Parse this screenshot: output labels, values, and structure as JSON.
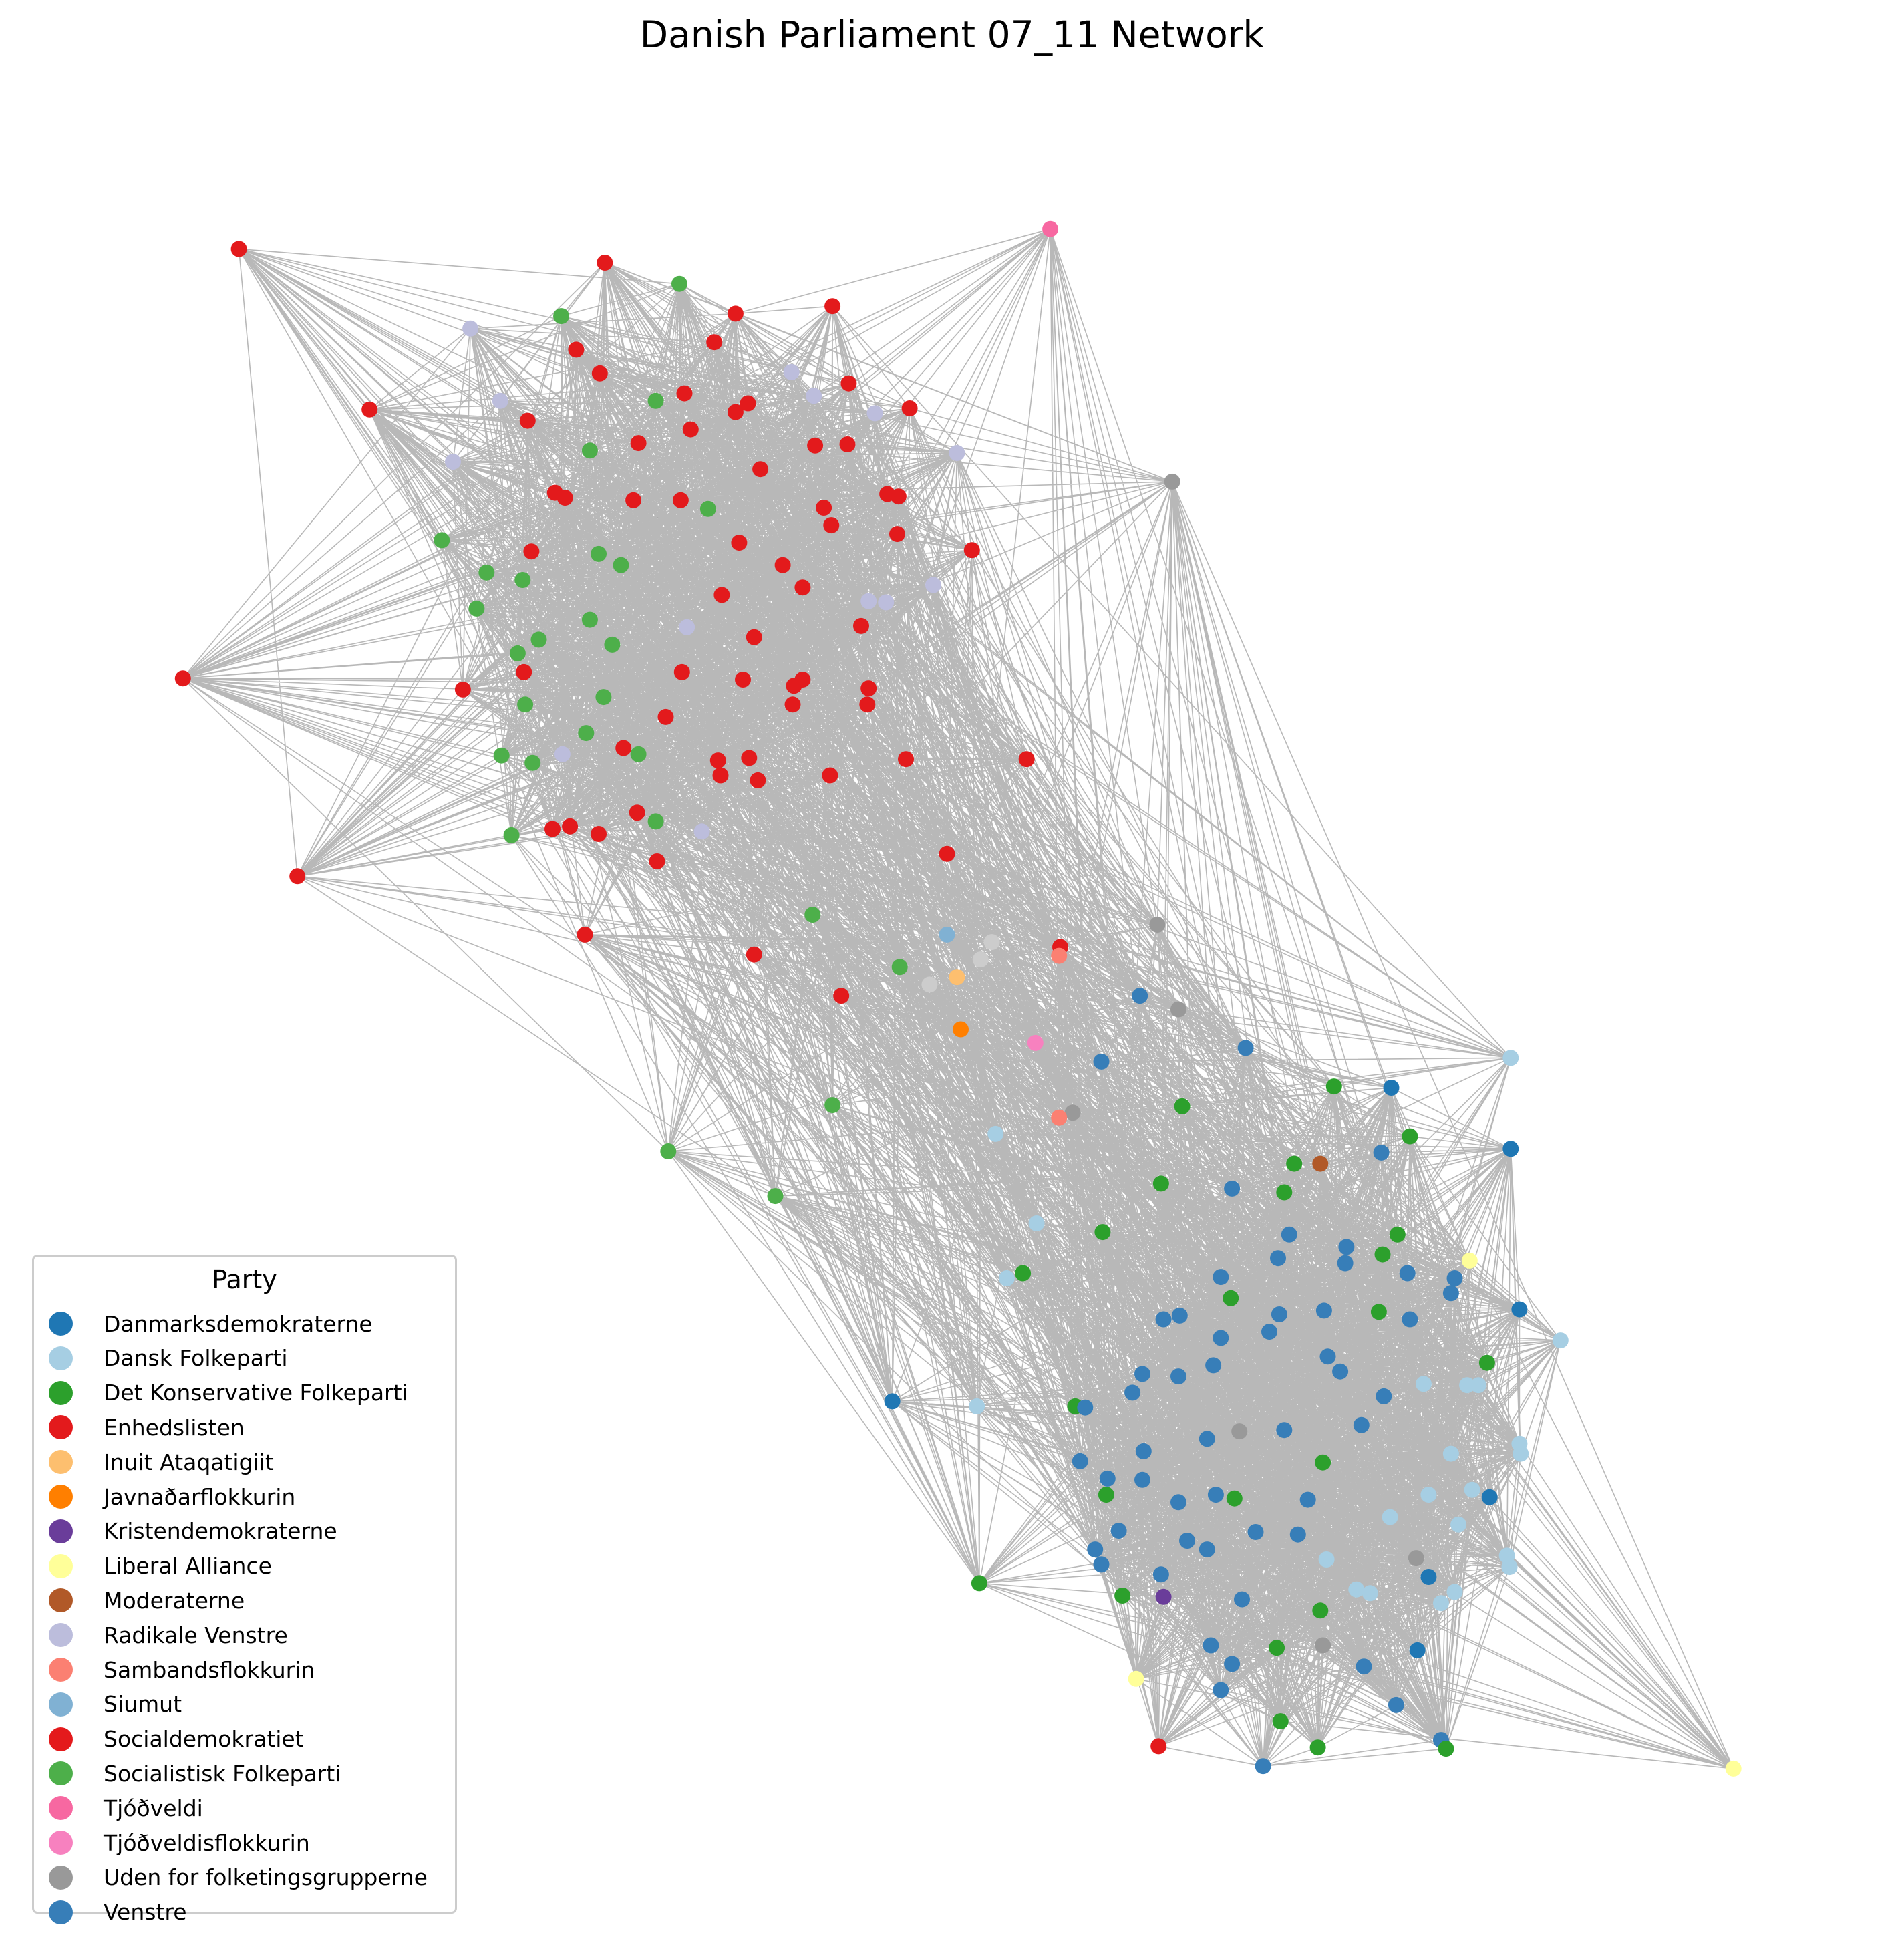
{
  "title": "Danish Parliament 07_11 Network",
  "legend": {
    "title": "Party",
    "items": [
      {
        "label": "Danmarksdemokraterne",
        "color": "#1f77b4"
      },
      {
        "label": "Dansk Folkeparti",
        "color": "#a6cee3"
      },
      {
        "label": "Det Konservative Folkeparti",
        "color": "#2ca02c"
      },
      {
        "label": "Enhedslisten",
        "color": "#e31a1c"
      },
      {
        "label": "Inuit Ataqatigiit",
        "color": "#fdbf6f"
      },
      {
        "label": "Javnaðarflokkurin",
        "color": "#ff7f00"
      },
      {
        "label": "Kristendemokraterne",
        "color": "#6a3d9a"
      },
      {
        "label": "Liberal Alliance",
        "color": "#ffff99"
      },
      {
        "label": "Moderaterne",
        "color": "#b15928"
      },
      {
        "label": "Radikale Venstre",
        "color": "#bcbddc"
      },
      {
        "label": "Sambandsflokkurin",
        "color": "#fb8072"
      },
      {
        "label": "Siumut",
        "color": "#80b1d3"
      },
      {
        "label": "Socialdemokratiet",
        "color": "#e41a1c"
      },
      {
        "label": "Socialistisk Folkeparti",
        "color": "#4daf4a"
      },
      {
        "label": "Tjóðveldi",
        "color": "#f768a1"
      },
      {
        "label": "Tjóðveldisflokkurin",
        "color": "#f781bf"
      },
      {
        "label": "Uden for folketingsgrupperne",
        "color": "#999999"
      },
      {
        "label": "Venstre",
        "color": "#377eb8"
      }
    ]
  }
}
